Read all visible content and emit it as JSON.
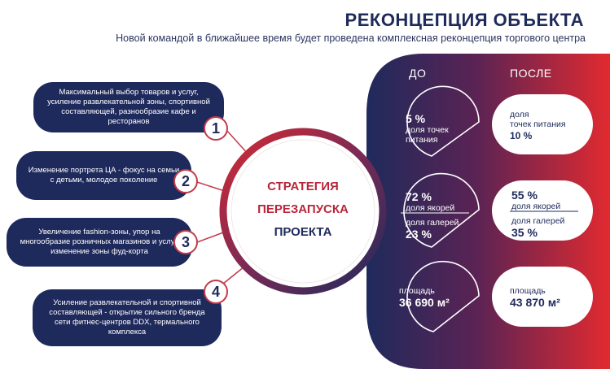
{
  "header": {
    "title": "РЕКОНЦЕПЦИЯ ОБЪЕКТА",
    "subtitle": "Новой командой в ближайшее время будет проведена комплексная реконцепция торгового центра"
  },
  "strategy": {
    "items": [
      {
        "number": "1",
        "text": "Максимальный выбор товаров и услуг, усиление развлекательной зоны, спортивной составляющей, разнообразие кафе и ресторанов"
      },
      {
        "number": "2",
        "text": "Изменение портрета ЦА - фокус на семьи с детьми, молодое поколение"
      },
      {
        "number": "3",
        "text": "Увеличение fashion-зоны, упор на многообразие розничных магазинов и услуг, изменение зоны фуд-корта"
      },
      {
        "number": "4",
        "text": "Усиление развлекательной и спортивной составляющей - открытие сильного бренда сети фитнес-центров DDX, термального комплекса"
      }
    ],
    "center_line1": "СТРАТЕГИЯ",
    "center_line2": "ПЕРЕЗАПУСКА",
    "center_line3": "ПРОЕКТА"
  },
  "comparison": {
    "before_label": "ДО",
    "after_label": "ПОСЛЕ",
    "before": {
      "food_value": "5 %",
      "food_label": "доля точек питания",
      "anchor_value": "72 %",
      "anchor_label": "доля якорей",
      "gallery_label": "доля галерей",
      "gallery_value": "23 %",
      "area_label": "площадь",
      "area_value": "36 690 м²"
    },
    "after": {
      "food_label_1": "доля",
      "food_label_2": "точек питания",
      "food_value": "10 %",
      "anchor_value": "55 %",
      "anchor_label": "доля якорей",
      "gallery_label": "доля галерей",
      "gallery_value": "35 %",
      "area_label": "площадь",
      "area_value": "43 870 м²"
    }
  },
  "colors": {
    "navy": "#1f2a5c",
    "red": "#d42a34",
    "accent_red": "#b8263a"
  }
}
